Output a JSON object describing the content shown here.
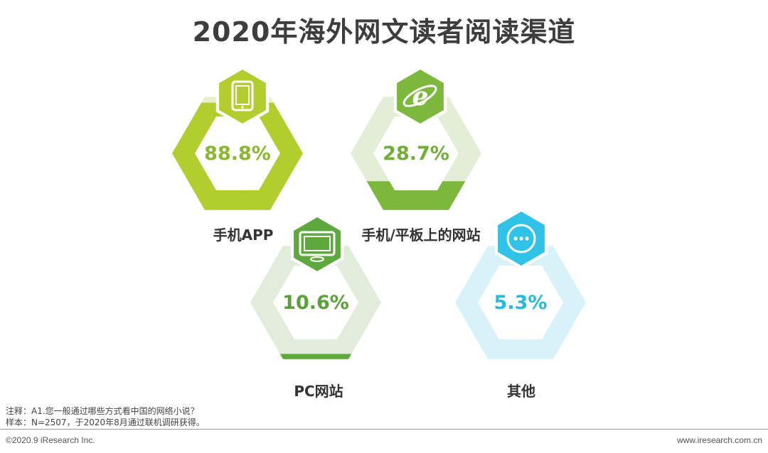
{
  "title": "2020年海外网文读者阅读渠道",
  "chart_data": {
    "type": "bar",
    "categories": [
      "手机APP",
      "手机/平板上的网站",
      "PC网站",
      "其他"
    ],
    "values": [
      88.8,
      28.7,
      10.6,
      5.3
    ],
    "value_labels": [
      "88.8%",
      "28.7%",
      "10.6%",
      "5.3%"
    ],
    "unit": "%",
    "ylim": [
      0,
      100
    ],
    "colors": {
      "series": [
        "#b2cd2e",
        "#7cb83b",
        "#5fa83d",
        "#2fc3e8"
      ],
      "light": [
        "#e9efcf",
        "#e4eed7",
        "#e1ecda",
        "#d9f2fa"
      ],
      "value_text": [
        "#8ab82b",
        "#6db033",
        "#5aa13b",
        "#27b9e0"
      ]
    },
    "icons": [
      "tablet-icon",
      "browser-e-icon",
      "monitor-icon",
      "more-dots-icon"
    ]
  },
  "notes": {
    "line1": "注释：A1.您一般通过哪些方式看中国的网络小说？",
    "line2": "样本：N=2507，于2020年8月通过联机调研获得。"
  },
  "footer": {
    "copyright": "©2020.9 iResearch Inc.",
    "website": "www.iresearch.com.cn"
  }
}
